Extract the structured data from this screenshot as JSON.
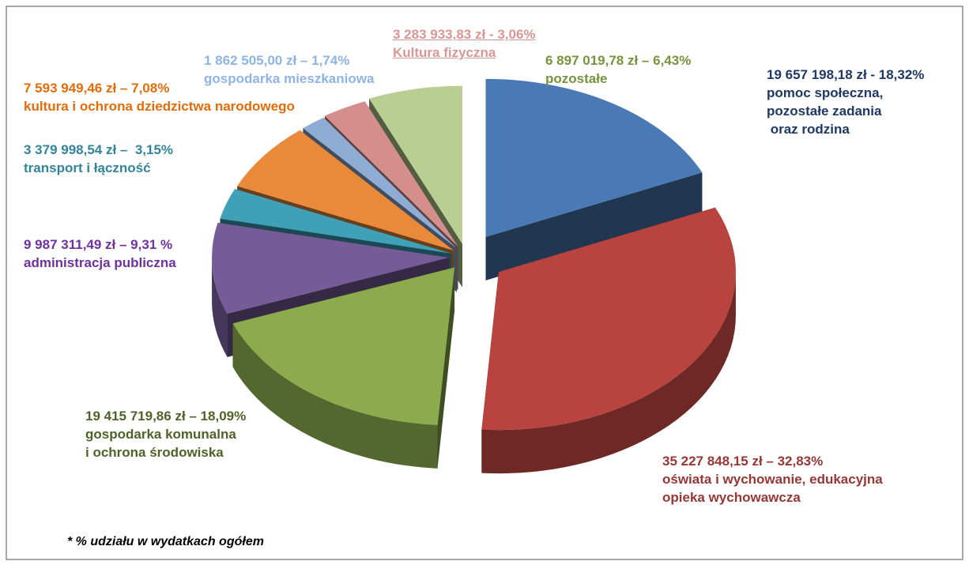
{
  "chart_data": {
    "type": "pie3d",
    "categories": [
      "pomoc społeczna,\npozostałe zadania\n oraz rodzina",
      "oświata i wychowanie, edukacyjna\nopieka wychowawcza",
      "gospodarka komunalna\ni ochrona środowiska",
      "administracja publiczna",
      "transport i łączność",
      "kultura i ochrona dziedzictwa narodowego",
      "gospodarka mieszkaniowa",
      "Kultura fizyczna",
      "pozostałe"
    ],
    "values": [
      18.32,
      32.83,
      18.09,
      9.31,
      3.15,
      7.08,
      1.74,
      3.06,
      6.43
    ],
    "value_labels": [
      "19 657 198,18 zł - 18,32%",
      "35 227 848,15 zł – 32,83%",
      "19 415 719,86 zł – 18,09%",
      "9 987 311,49 zł – 9,31 %",
      "3 379 998,54 zł –  3,15%",
      "7 593 949,46 zł – 7,08%",
      "1 862 505,00 zł – 1,74%",
      "3 283 933,83 zł - 3,06%",
      "6 897 019,78 zł – 6,43%"
    ],
    "colors": [
      "#4a7ab5",
      "#b8433f",
      "#8cab4c",
      "#755c99",
      "#3fa0b8",
      "#e98a3a",
      "#8eacd4",
      "#d48f8d",
      "#b9cf92"
    ],
    "label_colors": [
      "#1f3864",
      "#953735",
      "#4f6228",
      "#7030a0",
      "#31849b",
      "#e36c09",
      "#8eb4e3",
      "#d99694",
      "#77933c"
    ],
    "annotation": "* % udziału w wydatkach ogółem"
  }
}
